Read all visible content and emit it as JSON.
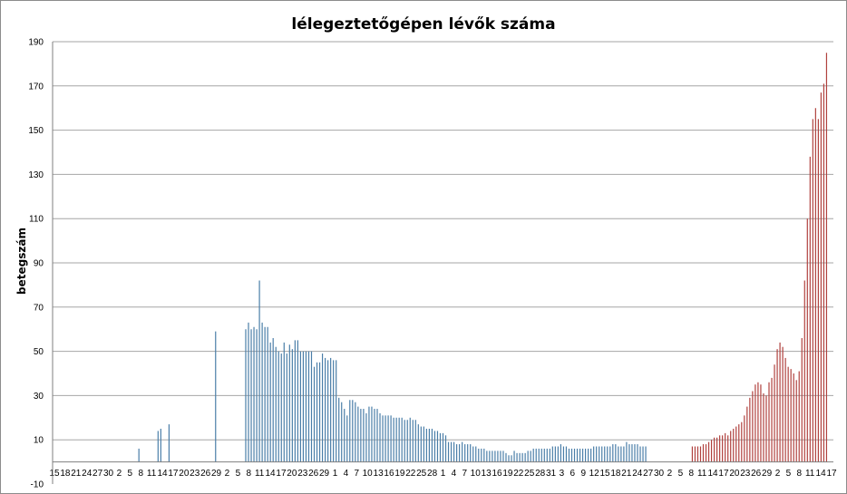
{
  "chart_data": {
    "type": "bar",
    "title": "lélegeztetőgépen lévők száma",
    "ylabel": "betegszám",
    "xlabel": "",
    "ylim": [
      -10,
      190
    ],
    "yticks": [
      -10,
      10,
      30,
      50,
      70,
      90,
      110,
      130,
      150,
      170,
      190
    ],
    "grid": true,
    "legend": "none",
    "colors": {
      "first_wave": "#4a7ea8",
      "second_wave": "#b0413e",
      "gridline": "#a6a6a6",
      "axis": "#7f7f7f"
    },
    "x_tick_labels": [
      "15",
      "18",
      "21",
      "24",
      "27",
      "30",
      "2",
      "5",
      "8",
      "11",
      "14",
      "17",
      "20",
      "23",
      "26",
      "29",
      "2",
      "5",
      "8",
      "11",
      "14",
      "17",
      "20",
      "23",
      "26",
      "29",
      "1",
      "4",
      "7",
      "10",
      "13",
      "16",
      "19",
      "22",
      "25",
      "28",
      "1",
      "4",
      "7",
      "10",
      "13",
      "16",
      "19",
      "22",
      "25",
      "28",
      "31",
      "3",
      "6",
      "9",
      "12",
      "15",
      "18",
      "21",
      "24",
      "27",
      "30",
      "2",
      "5",
      "8",
      "11",
      "14",
      "17",
      "20",
      "23",
      "26",
      "29",
      "2",
      "5",
      "8",
      "11",
      "14",
      "17"
    ],
    "series": [
      {
        "values": [
          0,
          0,
          0,
          0,
          0,
          0,
          0,
          0,
          0,
          0,
          0,
          0,
          0,
          0,
          0,
          0,
          0,
          0,
          0,
          0,
          0,
          0,
          0,
          0,
          0,
          0,
          0,
          0,
          0,
          0,
          0,
          6,
          0,
          0,
          0,
          0,
          0,
          0,
          14,
          15,
          0,
          0,
          17,
          0,
          0,
          0,
          0,
          0,
          0,
          0,
          0,
          0,
          0,
          0,
          0,
          0,
          0,
          0,
          0,
          59,
          0,
          0,
          0,
          0,
          0,
          0,
          0,
          0,
          0,
          0,
          60,
          63,
          60,
          61,
          60,
          82,
          63,
          61,
          61,
          54,
          56,
          52,
          50,
          49,
          54,
          49,
          53,
          51,
          55,
          55,
          50,
          50,
          50,
          50,
          50,
          43,
          45,
          45,
          49,
          47,
          46,
          47,
          46,
          46,
          29,
          27,
          24,
          21,
          28,
          28,
          27,
          25,
          24,
          24,
          22,
          25,
          25,
          24,
          24,
          22,
          21,
          21,
          21,
          21,
          20,
          20,
          20,
          20,
          19,
          19,
          20,
          19,
          19,
          17,
          16,
          16,
          15,
          15,
          15,
          14,
          14,
          13,
          13,
          12,
          9,
          9,
          9,
          8,
          8,
          9,
          8,
          8,
          8,
          7,
          7,
          6,
          6,
          6,
          5,
          5,
          5,
          5,
          5,
          5,
          5,
          4,
          3,
          3,
          5,
          4,
          4,
          4,
          4,
          5,
          5,
          6,
          6,
          6,
          6,
          6,
          6,
          6,
          7,
          7,
          7,
          8,
          7,
          7,
          6,
          6,
          6,
          6,
          6,
          6,
          6,
          6,
          6,
          7,
          7,
          7,
          7,
          7,
          7,
          7,
          8,
          8,
          7,
          7,
          7,
          9,
          8,
          8,
          8,
          8,
          7,
          7,
          7,
          0,
          0,
          0,
          0,
          0,
          0,
          0,
          0,
          0,
          0,
          0,
          0,
          0,
          0,
          0,
          0,
          0,
          0,
          0,
          0,
          0,
          0,
          0,
          0,
          0,
          0,
          0,
          0,
          0,
          0,
          0,
          0,
          0,
          0,
          0,
          0,
          0,
          0,
          0,
          0,
          0,
          0,
          0,
          0,
          0,
          0,
          0,
          0,
          0,
          0,
          0,
          0,
          0,
          0,
          0,
          0,
          0,
          0,
          0,
          0,
          0,
          0,
          0,
          0,
          0,
          0,
          0,
          0
        ]
      },
      {
        "values": [
          0,
          0,
          0,
          0,
          0,
          0,
          0,
          0,
          0,
          0,
          0,
          0,
          0,
          0,
          0,
          0,
          0,
          0,
          0,
          0,
          0,
          0,
          0,
          0,
          0,
          0,
          0,
          0,
          0,
          0,
          0,
          0,
          0,
          0,
          0,
          0,
          0,
          0,
          0,
          0,
          0,
          0,
          0,
          0,
          0,
          0,
          0,
          0,
          0,
          0,
          0,
          0,
          0,
          0,
          0,
          0,
          0,
          0,
          0,
          0,
          0,
          0,
          0,
          0,
          0,
          0,
          0,
          0,
          0,
          0,
          0,
          0,
          0,
          0,
          0,
          0,
          0,
          0,
          0,
          0,
          0,
          0,
          0,
          0,
          0,
          0,
          0,
          0,
          0,
          0,
          0,
          0,
          0,
          0,
          0,
          0,
          0,
          0,
          0,
          0,
          0,
          0,
          0,
          0,
          0,
          0,
          0,
          0,
          0,
          0,
          0,
          0,
          0,
          0,
          0,
          0,
          0,
          0,
          0,
          0,
          0,
          0,
          0,
          0,
          0,
          0,
          0,
          0,
          0,
          0,
          0,
          0,
          0,
          0,
          0,
          0,
          0,
          0,
          0,
          0,
          0,
          0,
          0,
          0,
          0,
          0,
          0,
          0,
          0,
          0,
          0,
          0,
          0,
          0,
          0,
          0,
          0,
          0,
          0,
          0,
          0,
          0,
          0,
          0,
          0,
          0,
          0,
          0,
          0,
          0,
          0,
          0,
          0,
          0,
          0,
          0,
          0,
          0,
          0,
          0,
          0,
          0,
          0,
          0,
          0,
          0,
          0,
          0,
          0,
          0,
          0,
          0,
          0,
          0,
          0,
          0,
          0,
          0,
          0,
          0,
          0,
          0,
          0,
          0,
          0,
          0,
          0,
          0,
          0,
          0,
          0,
          0,
          0,
          0,
          0,
          0,
          0,
          0,
          0,
          0,
          0,
          0,
          0,
          0,
          0,
          0,
          0,
          0,
          0,
          0,
          0,
          0,
          0,
          7,
          7,
          7,
          7,
          8,
          8,
          9,
          10,
          11,
          11,
          12,
          12,
          13,
          12,
          14,
          15,
          16,
          17,
          18,
          21,
          25,
          29,
          32,
          35,
          36,
          35,
          31,
          30,
          36,
          38,
          44,
          51,
          54,
          52,
          47,
          43,
          42,
          40,
          37,
          41,
          56,
          82,
          110,
          138,
          155,
          160,
          155,
          167,
          171,
          185
        ]
      }
    ]
  }
}
